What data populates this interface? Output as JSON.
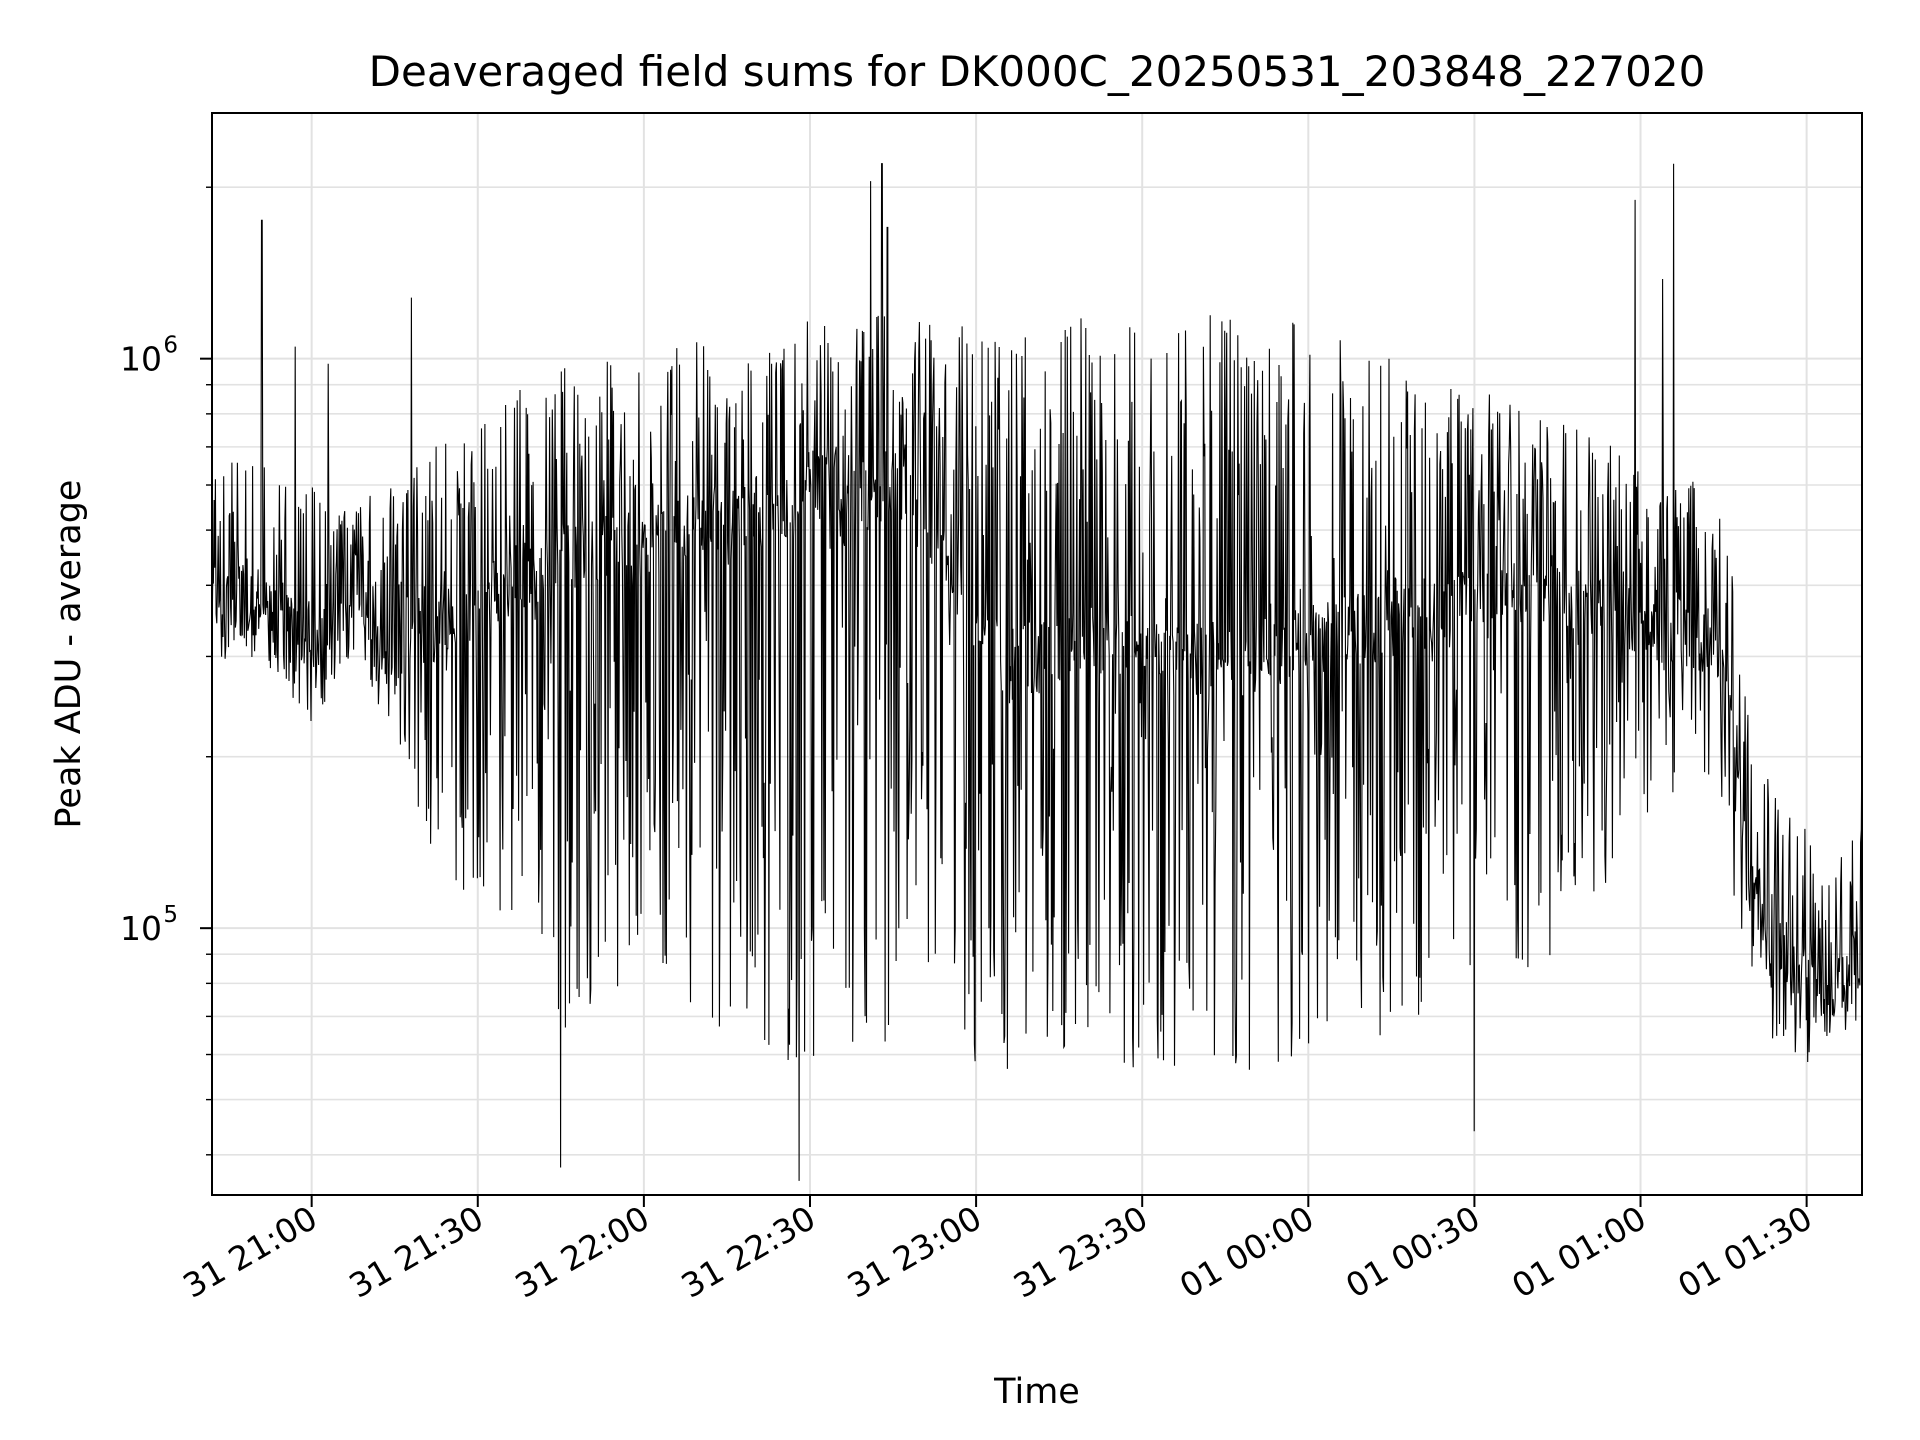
{
  "chart_data": {
    "type": "line",
    "title": "Deaveraged field sums for DK000C_20250531_203848_227020",
    "xlabel": "Time",
    "ylabel": "Peak ADU - average",
    "y_scale": "log",
    "x_range": [
      "2025-05-31 20:42",
      "2025-06-01 01:40"
    ],
    "ylim": [
      34000,
      2700000
    ],
    "x_ticks": [
      {
        "label": "31 21:00",
        "t": "2025-05-31 21:00"
      },
      {
        "label": "31 21:30",
        "t": "2025-05-31 21:30"
      },
      {
        "label": "31 22:00",
        "t": "2025-05-31 22:00"
      },
      {
        "label": "31 22:30",
        "t": "2025-05-31 22:30"
      },
      {
        "label": "31 23:00",
        "t": "2025-05-31 23:00"
      },
      {
        "label": "31 23:30",
        "t": "2025-05-31 23:30"
      },
      {
        "label": "01 00:00",
        "t": "2025-06-01 00:00"
      },
      {
        "label": "01 00:30",
        "t": "2025-06-01 00:30"
      },
      {
        "label": "01 01:00",
        "t": "2025-06-01 01:00"
      },
      {
        "label": "01 01:30",
        "t": "2025-06-01 01:30"
      }
    ],
    "y_ticks": [
      {
        "base": "10",
        "exp": "5",
        "value": 100000
      },
      {
        "base": "10",
        "exp": "6",
        "value": 1000000
      }
    ],
    "grid": true,
    "line_color": "#000000",
    "series": [
      {
        "x": [
          "2025-05-31 20:42",
          "2025-05-31 20:48",
          "2025-05-31 20:51",
          "2025-05-31 20:54",
          "2025-05-31 20:57",
          "2025-05-31 21:00",
          "2025-05-31 21:02",
          "2025-05-31 21:05",
          "2025-05-31 21:08",
          "2025-05-31 21:12",
          "2025-05-31 21:15",
          "2025-05-31 21:18",
          "2025-05-31 21:21",
          "2025-05-31 21:25",
          "2025-05-31 21:30",
          "2025-05-31 21:35",
          "2025-05-31 21:40",
          "2025-05-31 21:45",
          "2025-05-31 21:50",
          "2025-05-31 21:55",
          "2025-05-31 22:00",
          "2025-05-31 22:05",
          "2025-05-31 22:10",
          "2025-05-31 22:15",
          "2025-05-31 22:20",
          "2025-05-31 22:25",
          "2025-05-31 22:30",
          "2025-05-31 22:35",
          "2025-05-31 22:40",
          "2025-05-31 22:45",
          "2025-05-31 22:50",
          "2025-05-31 22:55",
          "2025-05-31 23:00",
          "2025-05-31 23:05",
          "2025-05-31 23:10",
          "2025-05-31 23:15",
          "2025-05-31 23:20",
          "2025-05-31 23:25",
          "2025-05-31 23:30",
          "2025-05-31 23:35",
          "2025-05-31 23:40",
          "2025-05-31 23:45",
          "2025-05-31 23:50",
          "2025-05-31 23:55",
          "2025-06-01 00:00",
          "2025-06-01 00:05",
          "2025-06-01 00:10",
          "2025-06-01 00:15",
          "2025-06-01 00:20",
          "2025-06-01 00:25",
          "2025-06-01 00:30",
          "2025-06-01 00:35",
          "2025-06-01 00:40",
          "2025-06-01 00:45",
          "2025-06-01 00:50",
          "2025-06-01 00:55",
          "2025-06-01 01:00",
          "2025-06-01 01:05",
          "2025-06-01 01:10",
          "2025-06-01 01:14",
          "2025-06-01 01:17",
          "2025-06-01 01:20",
          "2025-06-01 01:25",
          "2025-06-01 01:30",
          "2025-06-01 01:35",
          "2025-06-01 01:40"
        ],
        "y_center": [
          380000,
          390000,
          380000,
          370000,
          360000,
          320000,
          330000,
          400000,
          390000,
          330000,
          300000,
          350000,
          350000,
          330000,
          370000,
          400000,
          430000,
          450000,
          460000,
          470000,
          480000,
          490000,
          500000,
          510000,
          540000,
          560000,
          600000,
          620000,
          580000,
          620000,
          560000,
          430000,
          330000,
          300000,
          300000,
          310000,
          320000,
          320000,
          320000,
          300000,
          300000,
          300000,
          300000,
          310000,
          320000,
          330000,
          340000,
          340000,
          360000,
          360000,
          380000,
          390000,
          400000,
          400000,
          380000,
          360000,
          340000,
          330000,
          330000,
          310000,
          200000,
          120000,
          95000,
          85000,
          80000,
          88000
        ],
        "y_high": [
          650000,
          700000,
          680000,
          650000,
          620000,
          600000,
          560000,
          560000,
          550000,
          600000,
          600000,
          650000,
          700000,
          720000,
          780000,
          860000,
          920000,
          960000,
          1000000,
          1020000,
          1050000,
          1060000,
          1080000,
          1100000,
          1120000,
          1150000,
          1170000,
          1180000,
          1190000,
          1200000,
          1200000,
          1190000,
          1180000,
          1170000,
          1170000,
          1180000,
          1190000,
          1200000,
          1210000,
          1210000,
          1200000,
          1190000,
          1180000,
          1170000,
          1150000,
          1100000,
          1050000,
          1000000,
          950000,
          920000,
          900000,
          880000,
          850000,
          800000,
          780000,
          720000,
          680000,
          650000,
          620000,
          560000,
          400000,
          220000,
          170000,
          150000,
          140000,
          150000
        ],
        "y_low": [
          300000,
          290000,
          280000,
          280000,
          250000,
          230000,
          240000,
          280000,
          300000,
          240000,
          220000,
          180000,
          140000,
          120000,
          110000,
          100000,
          80000,
          65000,
          70000,
          75000,
          80000,
          70000,
          65000,
          62000,
          60000,
          58000,
          58000,
          60000,
          60000,
          60000,
          75000,
          70000,
          55000,
          50000,
          52000,
          55000,
          56000,
          55000,
          54000,
          54000,
          55000,
          56000,
          56000,
          58000,
          60000,
          60000,
          62000,
          64000,
          66000,
          70000,
          75000,
          80000,
          85000,
          90000,
          110000,
          120000,
          140000,
          160000,
          170000,
          180000,
          110000,
          70000,
          62000,
          58000,
          62000,
          70000
        ]
      }
    ],
    "spikes": [
      {
        "t": "2025-05-31 20:51",
        "value": 1750000
      },
      {
        "t": "2025-05-31 20:57",
        "value": 1050000
      },
      {
        "t": "2025-05-31 21:03",
        "value": 980000
      },
      {
        "t": "2025-05-31 21:18",
        "value": 1280000
      },
      {
        "t": "2025-05-31 22:41",
        "value": 2050000
      },
      {
        "t": "2025-05-31 22:43",
        "value": 2200000
      },
      {
        "t": "2025-05-31 22:44",
        "value": 1700000
      },
      {
        "t": "2025-06-01 00:59",
        "value": 1900000
      },
      {
        "t": "2025-06-01 01:04",
        "value": 1380000
      },
      {
        "t": "2025-06-01 01:06",
        "value": 2200000
      },
      {
        "t": "2025-05-31 21:45",
        "value": 38000
      },
      {
        "t": "2025-05-31 22:28",
        "value": 36000
      },
      {
        "t": "2025-06-01 00:30",
        "value": 44000
      },
      {
        "t": "2025-06-01 01:40",
        "value": 230000
      }
    ]
  }
}
